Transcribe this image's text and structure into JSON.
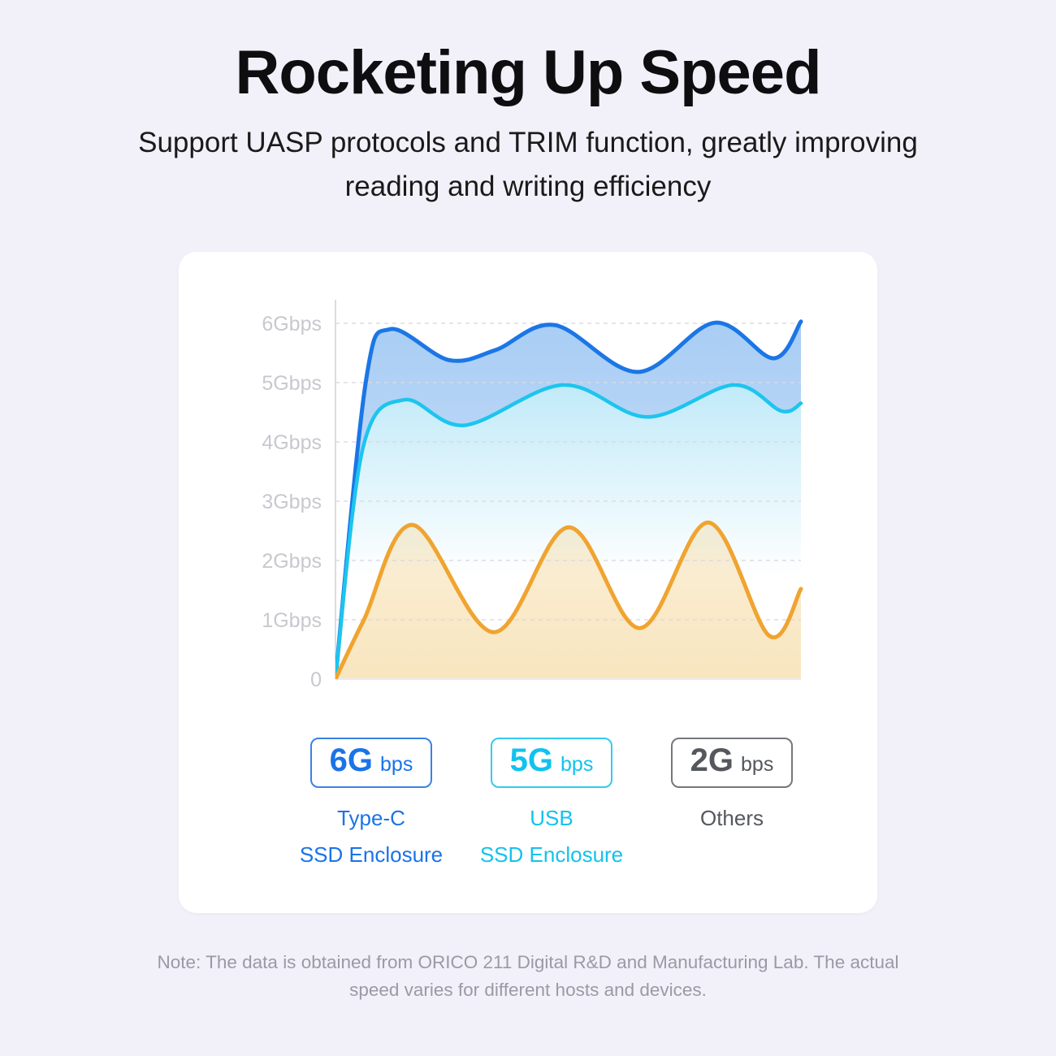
{
  "page": {
    "title": "Rocketing Up Speed",
    "subtitle": "Support UASP protocols and TRIM function, greatly improving\nreading and writing efficiency",
    "note": "Note: The data is obtained from ORICO 211 Digital R&D and Manufacturing Lab. The actual\nspeed varies for different hosts and devices."
  },
  "colors": {
    "page_background": "#f2f1f9",
    "card_background": "#ffffff",
    "title_text": "#0e0e10",
    "note_text": "#9a9aa5",
    "axis_line": "#dcdce3",
    "gridline": "#d9d9e1",
    "tick_label": "#c8c8cf",
    "series_blue": "#1b76e6",
    "series_cyan": "#1cc5ee",
    "series_orange": "#f0a430"
  },
  "chart_data": {
    "type": "area",
    "title": "",
    "xlabel": "",
    "ylabel": "",
    "ylim": [
      0,
      6.4
    ],
    "grid": "dashed horizontal gridlines, light vertical y-axis line, faint solid baseline",
    "legend_position": "below chart",
    "y_ticks": [
      {
        "label": "6Gbps",
        "value": 6
      },
      {
        "label": "5Gbps",
        "value": 5
      },
      {
        "label": "4Gbps",
        "value": 4
      },
      {
        "label": "3Gbps",
        "value": 3
      },
      {
        "label": "2Gbps",
        "value": 2
      },
      {
        "label": "1Gbps",
        "value": 1
      },
      {
        "label": "0",
        "value": 0
      }
    ],
    "series": [
      {
        "name": "Type-C SSD Enclosure",
        "rating": "6Gbps",
        "color": "#1b76e6",
        "stroke_width": 5,
        "fill_gradient": [
          "#a8cdf4",
          "#d9e6f9"
        ],
        "fill_opacity": [
          1,
          1
        ],
        "points_x_fraction_gbps": [
          [
            0,
            0
          ],
          [
            0.065,
            5.0
          ],
          [
            0.117,
            5.9
          ],
          [
            0.244,
            5.38
          ],
          [
            0.344,
            5.55
          ],
          [
            0.471,
            5.97
          ],
          [
            0.649,
            5.18
          ],
          [
            0.815,
            6.01
          ],
          [
            0.941,
            5.41
          ],
          [
            1,
            6.03
          ]
        ]
      },
      {
        "name": "USB SSD Enclosure",
        "rating": "5Gbps",
        "color": "#1cc5ee",
        "stroke_width": 4.5,
        "fill_gradient": [
          "#b5e6f7",
          "#ffffff"
        ],
        "fill_opacity": [
          1,
          1
        ],
        "points_x_fraction_gbps": [
          [
            0,
            0
          ],
          [
            0.059,
            3.9
          ],
          [
            0.147,
            4.71
          ],
          [
            0.277,
            4.28
          ],
          [
            0.489,
            4.96
          ],
          [
            0.67,
            4.42
          ],
          [
            0.855,
            4.96
          ],
          [
            0.958,
            4.52
          ],
          [
            1,
            4.65
          ]
        ]
      },
      {
        "name": "Others",
        "rating": "2Gbps",
        "color": "#f0a430",
        "stroke_width": 5,
        "fill_gradient": [
          "#eeb74a",
          "#eec368"
        ],
        "fill_opacity": [
          0.2,
          0.42
        ],
        "points_x_fraction_gbps": [
          [
            0,
            0
          ],
          [
            0.061,
            1.0
          ],
          [
            0.166,
            2.6
          ],
          [
            0.34,
            0.79
          ],
          [
            0.501,
            2.56
          ],
          [
            0.654,
            0.86
          ],
          [
            0.801,
            2.64
          ],
          [
            0.932,
            0.73
          ],
          [
            1,
            1.52
          ]
        ]
      }
    ]
  },
  "legend": {
    "items": [
      {
        "big": "6G",
        "unit": "bps",
        "label_line1": "Type-C",
        "label_line2": "SSD Enclosure",
        "color": "#1a73e8",
        "border": "#3b82e4"
      },
      {
        "big": "5G",
        "unit": "bps",
        "label_line1": "USB",
        "label_line2": "SSD Enclosure",
        "color": "#12c2ee",
        "border": "#33cbee"
      },
      {
        "big": "2G",
        "unit": "bps",
        "label_line1": "Others",
        "label_line2": "",
        "color": "#54585d",
        "border": "#74787c"
      }
    ]
  }
}
